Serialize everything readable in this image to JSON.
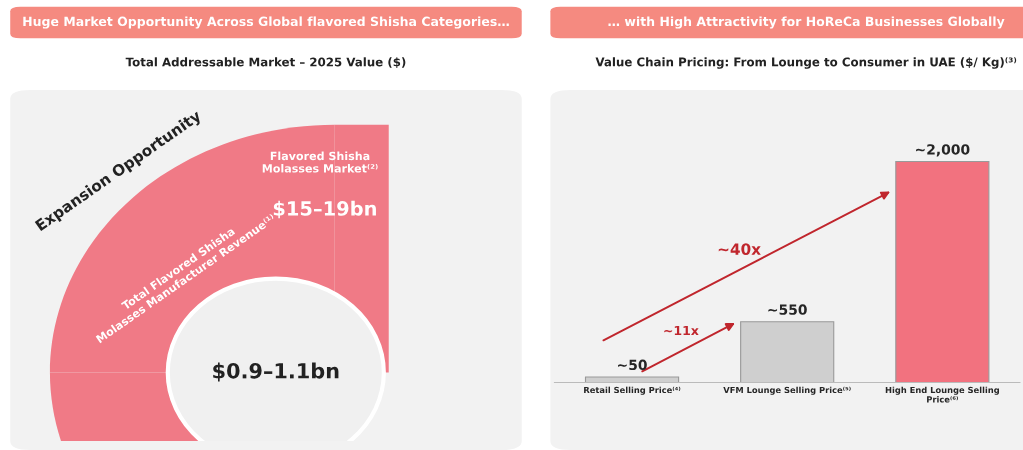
{
  "chart_data": [
    {
      "type": "other",
      "title": "Huge Market Opportunity Across Global flavored Shisha Categories…",
      "subtitle": "Total Addressable Market – 2025 Value ($)",
      "annotations": [
        "Expansion Opportunity",
        "Flavored Shisha\nMolasses Market⁽²⁾",
        "$15–19bn",
        "Total Flavored Shisha\nMolasses Manufacturer Revenue⁽¹⁾",
        "$0.9–1.1bn"
      ]
    },
    {
      "type": "bar",
      "title": "… with High Attractivity for HoReCa Businesses Globally",
      "subtitle": "Value Chain Pricing: From Lounge to Consumer in UAE ($/ Kg)⁽³⁾",
      "categories": [
        "Retail Selling Price⁽⁴⁾",
        "VFM Lounge Selling Price⁽⁵⁾",
        "High End Lounge Selling\nPrice⁽⁶⁾"
      ],
      "values": [
        50,
        550,
        2000
      ],
      "value_labels": [
        "~50",
        "~550",
        "~2,000"
      ],
      "colors": [
        "#cfcfcf",
        "#cfcfcf",
        "#f2727f"
      ],
      "annotations": [
        "~11x",
        "~40x"
      ]
    }
  ]
}
